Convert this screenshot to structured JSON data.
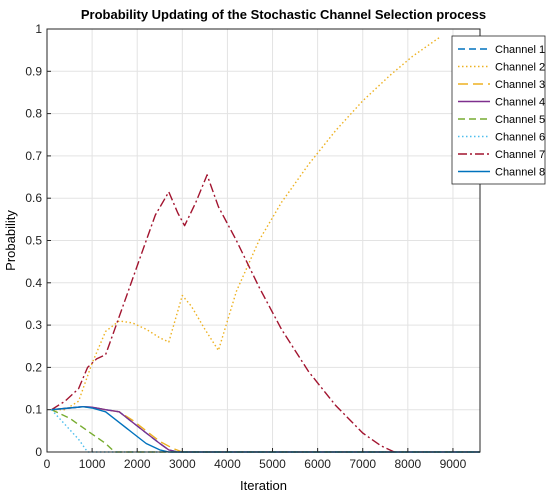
{
  "chart_data": {
    "type": "line",
    "title": "Probability Updating of the Stochastic Channel Selection process",
    "xlabel": "Iteration",
    "ylabel": "Probability",
    "xlim": [
      0,
      9600
    ],
    "ylim": [
      0,
      1
    ],
    "xticks": [
      0,
      1000,
      2000,
      3000,
      4000,
      5000,
      6000,
      7000,
      8000,
      9000
    ],
    "yticks": [
      0,
      0.1,
      0.2,
      0.3,
      0.4,
      0.5,
      0.6,
      0.7,
      0.8,
      0.9,
      1
    ],
    "ytick_labels": [
      "0",
      "0.1",
      "0.2",
      "0.3",
      "0.4",
      "0.5",
      "0.6",
      "0.7",
      "0.8",
      "0.9",
      "1"
    ],
    "grid": true,
    "legend_position": "top-right",
    "series": [
      {
        "name": "Channel 1",
        "color": "#0072BD",
        "dash": "dashed",
        "x": [
          100,
          500,
          800,
          1000,
          1300,
          1600,
          1900,
          2200,
          2500,
          2700,
          2900,
          9600
        ],
        "y": [
          0.1,
          0.104,
          0.107,
          0.106,
          0.1,
          0.095,
          0.07,
          0.045,
          0.02,
          0.005,
          0,
          0
        ]
      },
      {
        "name": "Channel 2",
        "color": "#EDB120",
        "dash": "dotted",
        "x": [
          100,
          400,
          700,
          1000,
          1300,
          1600,
          1900,
          2200,
          2500,
          2700,
          3000,
          3200,
          3500,
          3800,
          4200,
          4700,
          5200,
          5800,
          6400,
          7000,
          7600,
          8100,
          8700
        ],
        "y": [
          0.1,
          0.1,
          0.12,
          0.21,
          0.285,
          0.31,
          0.305,
          0.29,
          0.27,
          0.26,
          0.37,
          0.345,
          0.29,
          0.24,
          0.38,
          0.5,
          0.59,
          0.68,
          0.76,
          0.83,
          0.89,
          0.935,
          0.98
        ]
      },
      {
        "name": "Channel 3",
        "color": "#EDB120",
        "dash": "longdash",
        "x": [
          100,
          500,
          800,
          1000,
          1300,
          1600,
          1900,
          2200,
          2500,
          2800,
          3000,
          9600
        ],
        "y": [
          0.1,
          0.104,
          0.107,
          0.105,
          0.1,
          0.095,
          0.075,
          0.05,
          0.025,
          0.008,
          0,
          0
        ]
      },
      {
        "name": "Channel 4",
        "color": "#7E2F8E",
        "dash": "solid",
        "x": [
          100,
          500,
          800,
          1000,
          1300,
          1600,
          1900,
          2200,
          2500,
          2700,
          2900,
          9600
        ],
        "y": [
          0.1,
          0.104,
          0.107,
          0.106,
          0.1,
          0.095,
          0.07,
          0.045,
          0.02,
          0.005,
          0,
          0
        ]
      },
      {
        "name": "Channel 5",
        "color": "#77AC30",
        "dash": "dashed",
        "x": [
          100,
          500,
          900,
          1300,
          1500,
          9600
        ],
        "y": [
          0.1,
          0.08,
          0.05,
          0.02,
          0,
          0
        ]
      },
      {
        "name": "Channel 6",
        "color": "#4DBEEE",
        "dash": "dotted",
        "x": [
          100,
          400,
          700,
          900,
          9600
        ],
        "y": [
          0.1,
          0.065,
          0.03,
          0,
          0
        ]
      },
      {
        "name": "Channel 7",
        "color": "#A2142F",
        "dash": "dashdot",
        "x": [
          100,
          400,
          700,
          900,
          1100,
          1300,
          1500,
          1800,
          2100,
          2400,
          2700,
          2900,
          3050,
          3300,
          3550,
          3800,
          4200,
          4700,
          5200,
          5800,
          6400,
          7000,
          7400,
          7700
        ],
        "y": [
          0.1,
          0.12,
          0.15,
          0.2,
          0.22,
          0.23,
          0.29,
          0.38,
          0.47,
          0.56,
          0.615,
          0.565,
          0.535,
          0.59,
          0.655,
          0.58,
          0.5,
          0.39,
          0.29,
          0.19,
          0.11,
          0.045,
          0.015,
          0
        ]
      },
      {
        "name": "Channel 8",
        "color": "#0072BD",
        "dash": "solid",
        "x": [
          100,
          500,
          800,
          1000,
          1300,
          1600,
          1900,
          2200,
          2500,
          2700,
          9600
        ],
        "y": [
          0.1,
          0.104,
          0.107,
          0.104,
          0.095,
          0.07,
          0.045,
          0.02,
          0.005,
          0,
          0
        ]
      }
    ]
  }
}
